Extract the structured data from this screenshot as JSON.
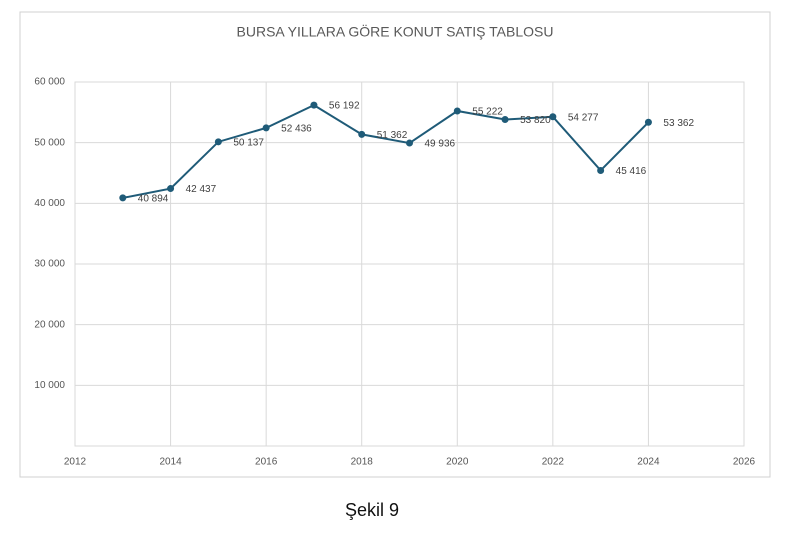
{
  "chart_data": {
    "type": "line",
    "title": "BURSA YILLARA GÖRE KONUT SATIŞ TABLOSU",
    "x": [
      2013,
      2014,
      2015,
      2016,
      2017,
      2018,
      2019,
      2020,
      2021,
      2022,
      2023,
      2024
    ],
    "series": [
      {
        "color": "#1f5b78",
        "values": [
          40894,
          42437,
          50137,
          52436,
          56192,
          51362,
          49936,
          55222,
          53820,
          54277,
          45416,
          53362
        ],
        "value_labels": [
          "40 894",
          "42 437",
          "50 137",
          "52 436",
          "56 192",
          "51 362",
          "49 936",
          "55 222",
          "53 820",
          "54 277",
          "45 416",
          "53 362"
        ]
      }
    ],
    "xlim": [
      2012,
      2026
    ],
    "xticks": [
      2012,
      2014,
      2016,
      2018,
      2020,
      2022,
      2024,
      2026
    ],
    "ylim": [
      0,
      60000
    ],
    "yticks": [
      {
        "value": 10000,
        "label": "10 000"
      },
      {
        "value": 20000,
        "label": "20 000"
      },
      {
        "value": 30000,
        "label": "30 000"
      },
      {
        "value": 40000,
        "label": "40 000"
      },
      {
        "value": 50000,
        "label": "50 000"
      },
      {
        "value": 60000,
        "label": "60 000"
      }
    ],
    "grid": true
  },
  "caption": "Şekil 9"
}
